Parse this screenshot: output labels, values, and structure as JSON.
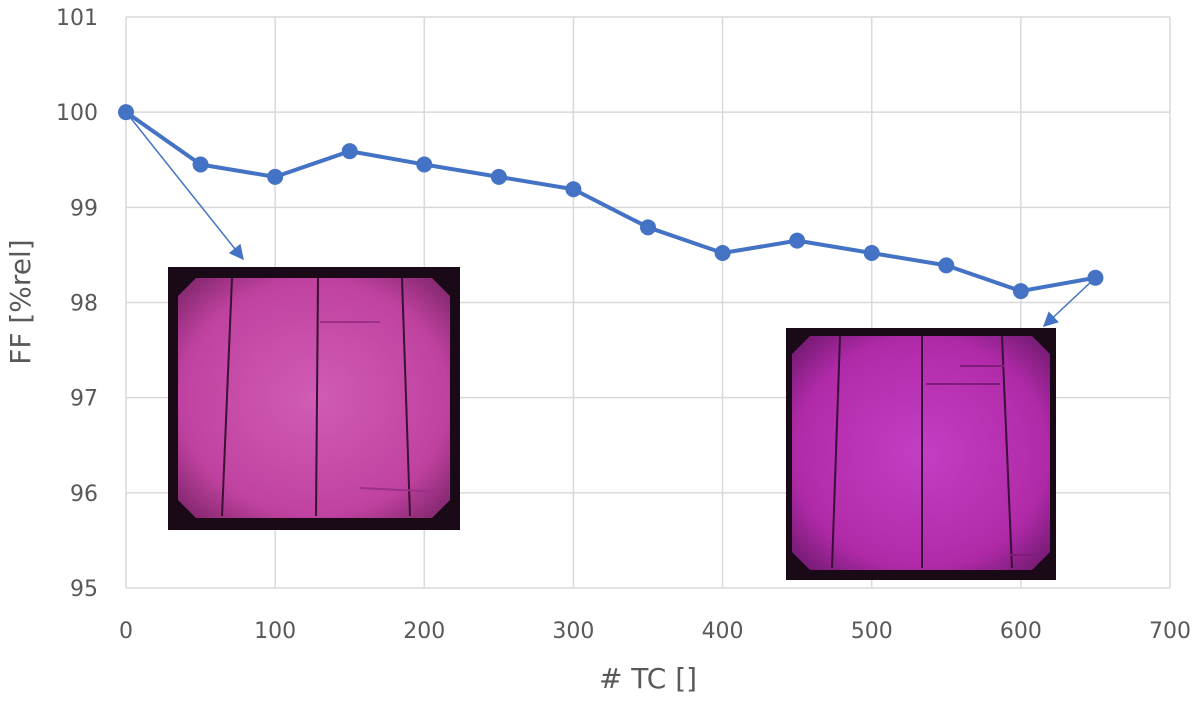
{
  "chart_data": {
    "type": "line",
    "xlabel": "# TC []",
    "ylabel": "FF [%rel]",
    "xlim": [
      0,
      700
    ],
    "ylim": [
      95,
      101
    ],
    "x_ticks": [
      0,
      100,
      200,
      300,
      400,
      500,
      600,
      700
    ],
    "y_ticks": [
      95,
      96,
      97,
      98,
      99,
      100,
      101
    ],
    "grid": true,
    "series": [
      {
        "x": [
          0,
          50,
          100,
          150,
          200,
          250,
          300,
          350,
          400,
          450,
          500,
          550,
          600,
          650
        ],
        "y": [
          100,
          99.45,
          99.32,
          99.59,
          99.45,
          99.32,
          99.19,
          98.79,
          98.52,
          98.65,
          98.52,
          98.39,
          98.12,
          98.26
        ],
        "color": "#4472C4"
      }
    ],
    "annotations": [
      {
        "type": "arrow",
        "from_point_x": 0,
        "to": "el-image-initial"
      },
      {
        "type": "arrow",
        "from_point_x": 650,
        "to": "el-image-final"
      }
    ]
  },
  "insets": {
    "initial": {
      "description_icon": "electroluminescence-cell-image",
      "tone": "#c84aa8"
    },
    "final": {
      "description_icon": "electroluminescence-cell-image",
      "tone": "#b62cb4"
    }
  },
  "colors": {
    "grid": "#d9d9d9",
    "line": "#4472C4",
    "text": "#595959"
  }
}
